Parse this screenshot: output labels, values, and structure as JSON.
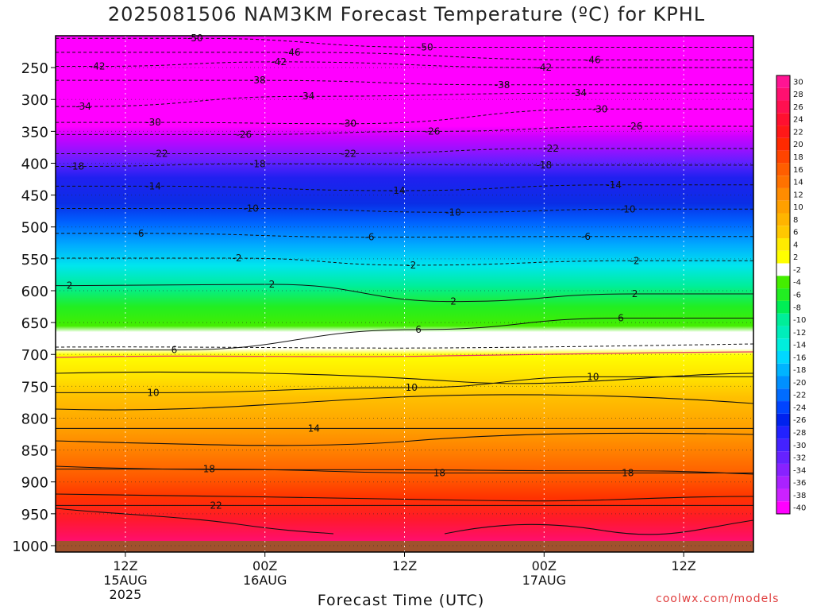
{
  "title": "2025081506 NAM3KM Forecast Temperature (ºC) for KPHL",
  "xlabel": "Forecast Time (UTC)",
  "credit": "coolwx.com/models",
  "chart_data": {
    "type": "heatmap",
    "title": "2025081506 NAM3KM Forecast Temperature (ºC) for KPHL",
    "xlabel": "Forecast Time (UTC)",
    "ylabel": "",
    "y_axis": "pressure (hPa), inverted",
    "ylim": [
      1010,
      200
    ],
    "xlim": [
      "2025-08-15 06Z",
      "2025-08-17 18Z"
    ],
    "y_ticks": [
      250,
      300,
      350,
      400,
      450,
      500,
      550,
      600,
      650,
      700,
      750,
      800,
      850,
      900,
      950,
      1000
    ],
    "x_ticks": [
      {
        "line1": "12Z",
        "line2": "15AUG",
        "line3": "2025"
      },
      {
        "line1": "00Z",
        "line2": "16AUG",
        "line3": ""
      },
      {
        "line1": "12Z",
        "line2": "",
        "line3": ""
      },
      {
        "line1": "00Z",
        "line2": "17AUG",
        "line3": ""
      },
      {
        "line1": "12Z",
        "line2": "",
        "line3": ""
      }
    ],
    "colorbar_labels": [
      "30",
      "28",
      "26",
      "24",
      "22",
      "20",
      "18",
      "16",
      "14",
      "12",
      "10",
      "8",
      "6",
      "4",
      "2",
      "-2",
      "-4",
      "-6",
      "-8",
      "-10",
      "-12",
      "-14",
      "-16",
      "-18",
      "-20",
      "-22",
      "-24",
      "-26",
      "-28",
      "-30",
      "-32",
      "-34",
      "-36",
      "-38",
      "-40"
    ],
    "colorbar_colors": [
      "#ff1493",
      "#ff1070",
      "#ff1050",
      "#ff1030",
      "#ff1818",
      "#ff2a00",
      "#ff4400",
      "#ff5e00",
      "#ff7200",
      "#ff8c00",
      "#ffa000",
      "#ffb400",
      "#ffc800",
      "#ffeb00",
      "#ffff00",
      "#ffffff",
      "#44ee00",
      "#22ee22",
      "#00ee55",
      "#00ee99",
      "#00eebb",
      "#00eedd",
      "#00d8ff",
      "#00b4ff",
      "#0090ff",
      "#006cff",
      "#0044ff",
      "#0022ee",
      "#2222ff",
      "#4422ff",
      "#6622ff",
      "#8822ff",
      "#aa22ff",
      "#cc22ff",
      "#ff00ff"
    ],
    "contour_labels": [
      {
        "v": "-50",
        "t": 0.2,
        "p": 204
      },
      {
        "v": "-50",
        "t": 0.53,
        "p": 218
      },
      {
        "v": "-46",
        "t": 0.34,
        "p": 226
      },
      {
        "v": "-46",
        "t": 0.77,
        "p": 238
      },
      {
        "v": "-42",
        "t": 0.06,
        "p": 248
      },
      {
        "v": "-42",
        "t": 0.32,
        "p": 241
      },
      {
        "v": "-42",
        "t": 0.7,
        "p": 250
      },
      {
        "v": "-38",
        "t": 0.29,
        "p": 270
      },
      {
        "v": "-38",
        "t": 0.64,
        "p": 277
      },
      {
        "v": "-34",
        "t": 0.04,
        "p": 311
      },
      {
        "v": "-34",
        "t": 0.36,
        "p": 295
      },
      {
        "v": "-34",
        "t": 0.75,
        "p": 290
      },
      {
        "v": "-30",
        "t": 0.14,
        "p": 336
      },
      {
        "v": "-30",
        "t": 0.42,
        "p": 338
      },
      {
        "v": "-30",
        "t": 0.78,
        "p": 315
      },
      {
        "v": "-26",
        "t": 0.27,
        "p": 355
      },
      {
        "v": "-26",
        "t": 0.54,
        "p": 350
      },
      {
        "v": "-26",
        "t": 0.83,
        "p": 342
      },
      {
        "v": "-22",
        "t": 0.15,
        "p": 385
      },
      {
        "v": "-22",
        "t": 0.42,
        "p": 385
      },
      {
        "v": "-22",
        "t": 0.71,
        "p": 377
      },
      {
        "v": "-18",
        "t": 0.03,
        "p": 405
      },
      {
        "v": "-18",
        "t": 0.29,
        "p": 401
      },
      {
        "v": "-18",
        "t": 0.7,
        "p": 403
      },
      {
        "v": "-14",
        "t": 0.14,
        "p": 436
      },
      {
        "v": "-14",
        "t": 0.49,
        "p": 443
      },
      {
        "v": "-14",
        "t": 0.8,
        "p": 434
      },
      {
        "v": "-10",
        "t": 0.28,
        "p": 471
      },
      {
        "v": "-10",
        "t": 0.57,
        "p": 477
      },
      {
        "v": "-10",
        "t": 0.82,
        "p": 472
      },
      {
        "v": "-6",
        "t": 0.12,
        "p": 510
      },
      {
        "v": "-6",
        "t": 0.45,
        "p": 516
      },
      {
        "v": "-6",
        "t": 0.76,
        "p": 515
      },
      {
        "v": "-2",
        "t": 0.26,
        "p": 549
      },
      {
        "v": "-2",
        "t": 0.51,
        "p": 560
      },
      {
        "v": "-2",
        "t": 0.83,
        "p": 553
      },
      {
        "v": "2",
        "t": 0.02,
        "p": 592
      },
      {
        "v": "2",
        "t": 0.31,
        "p": 590
      },
      {
        "v": "2",
        "t": 0.57,
        "p": 617
      },
      {
        "v": "2",
        "t": 0.83,
        "p": 605
      },
      {
        "v": "6",
        "t": 0.17,
        "p": 693
      },
      {
        "v": "6",
        "t": 0.52,
        "p": 661
      },
      {
        "v": "6",
        "t": 0.81,
        "p": 643
      },
      {
        "v": "10",
        "t": 0.14,
        "p": 760
      },
      {
        "v": "10",
        "t": 0.51,
        "p": 752
      },
      {
        "v": "10",
        "t": 0.77,
        "p": 735
      },
      {
        "v": "14",
        "t": 0.37,
        "p": 816
      },
      {
        "v": "18",
        "t": 0.22,
        "p": 880
      },
      {
        "v": "18",
        "t": 0.55,
        "p": 886
      },
      {
        "v": "18",
        "t": 0.82,
        "p": 886
      },
      {
        "v": "22",
        "t": 0.23,
        "p": 937
      }
    ]
  }
}
